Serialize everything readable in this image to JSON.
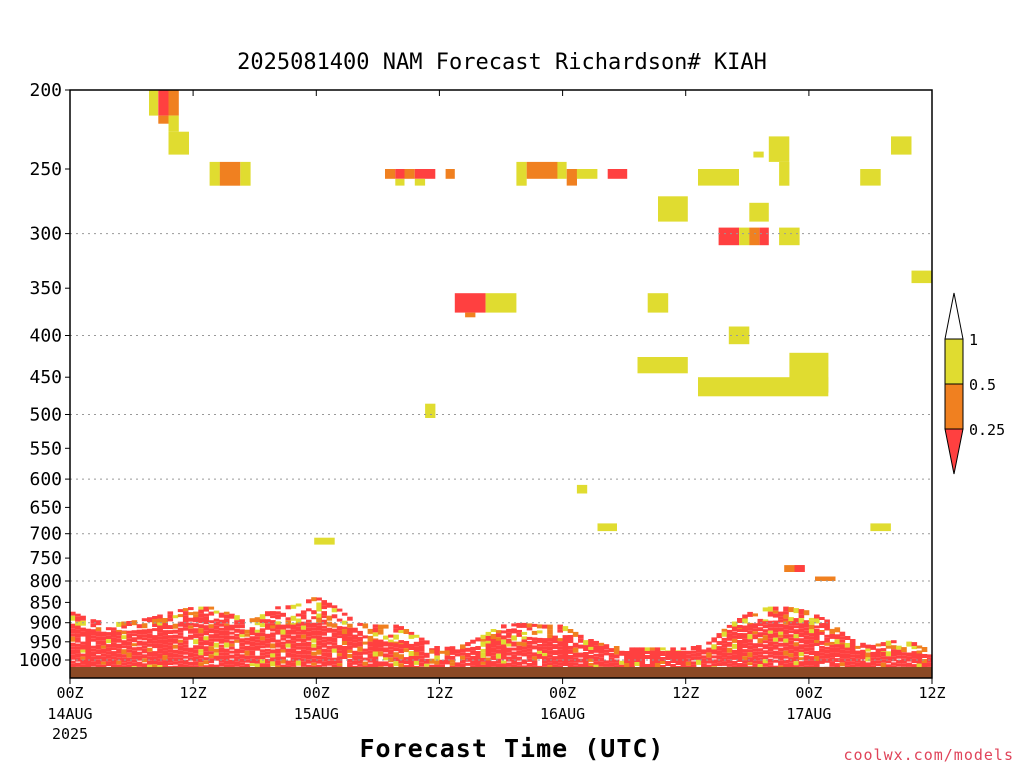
{
  "title": "2025081400 NAM Forecast Richardson# KIAH",
  "credit": "coolwx.com/models",
  "colors": {
    "red": "#ff4040",
    "orange": "#f08020",
    "yellow": "#e0dc30",
    "ground": "#8b4a26"
  },
  "chart_data": {
    "type": "heatmap",
    "title": "2025081400 NAM Forecast Richardson# KIAH",
    "xlabel": "Forecast Time (UTC)",
    "ylabel": "",
    "xlim": [
      0,
      84
    ],
    "ylim": [
      1050,
      200
    ],
    "y_scale": "log-pressure",
    "grid": "dotted horizontal",
    "y_ticks": [
      200,
      250,
      300,
      350,
      400,
      450,
      500,
      550,
      600,
      650,
      700,
      750,
      800,
      850,
      900,
      950,
      1000
    ],
    "y_tick_labels": [
      "200",
      "250",
      "300",
      "350",
      "400",
      "450",
      "500",
      "550",
      "600",
      "650",
      "700",
      "750",
      "800",
      "850",
      "900",
      "950",
      "1000"
    ],
    "x_ticks": [
      {
        "hour": 0,
        "label": "00Z",
        "sub1": "14AUG",
        "sub2": "2025"
      },
      {
        "hour": 12,
        "label": "12Z",
        "sub1": "",
        "sub2": ""
      },
      {
        "hour": 24,
        "label": "00Z",
        "sub1": "15AUG",
        "sub2": ""
      },
      {
        "hour": 36,
        "label": "12Z",
        "sub1": "",
        "sub2": ""
      },
      {
        "hour": 48,
        "label": "00Z",
        "sub1": "16AUG",
        "sub2": ""
      },
      {
        "hour": 60,
        "label": "12Z",
        "sub1": "",
        "sub2": ""
      },
      {
        "hour": 72,
        "label": "00Z",
        "sub1": "17AUG",
        "sub2": ""
      },
      {
        "hour": 84,
        "label": "12Z",
        "sub1": "",
        "sub2": ""
      }
    ],
    "legend": {
      "placement": "right",
      "entries": [
        {
          "color": "#e0dc30",
          "range": "0.5 - 1"
        },
        {
          "color": "#f08020",
          "range": "0.25 - 0.5"
        },
        {
          "color": "#ff4040",
          "range": "< 0.25"
        }
      ],
      "labels": [
        "1",
        "0.5",
        "0.25"
      ]
    },
    "ground_level_p": 1020,
    "cells": [
      {
        "t0": 7.7,
        "t1": 8.6,
        "p0": 200,
        "p1": 215,
        "c": "yellow"
      },
      {
        "t0": 8.6,
        "t1": 9.6,
        "p0": 200,
        "p1": 215,
        "c": "red"
      },
      {
        "t0": 9.6,
        "t1": 10.6,
        "p0": 200,
        "p1": 215,
        "c": "orange"
      },
      {
        "t0": 8.6,
        "t1": 9.6,
        "p0": 215,
        "p1": 220,
        "c": "orange"
      },
      {
        "t0": 9.6,
        "t1": 10.6,
        "p0": 215,
        "p1": 225,
        "c": "yellow"
      },
      {
        "t0": 9.6,
        "t1": 11.6,
        "p0": 225,
        "p1": 240,
        "c": "yellow"
      },
      {
        "t0": 13.6,
        "t1": 14.6,
        "p0": 245,
        "p1": 262,
        "c": "yellow"
      },
      {
        "t0": 14.6,
        "t1": 16.6,
        "p0": 245,
        "p1": 262,
        "c": "orange"
      },
      {
        "t0": 16.6,
        "t1": 17.6,
        "p0": 245,
        "p1": 262,
        "c": "yellow"
      },
      {
        "t0": 30.7,
        "t1": 31.7,
        "p0": 250,
        "p1": 257,
        "c": "orange"
      },
      {
        "t0": 31.7,
        "t1": 32.6,
        "p0": 250,
        "p1": 257,
        "c": "red"
      },
      {
        "t0": 32.6,
        "t1": 33.6,
        "p0": 250,
        "p1": 257,
        "c": "orange"
      },
      {
        "t0": 33.6,
        "t1": 35.6,
        "p0": 250,
        "p1": 257,
        "c": "red"
      },
      {
        "t0": 31.7,
        "t1": 32.6,
        "p0": 257,
        "p1": 262,
        "c": "yellow"
      },
      {
        "t0": 33.6,
        "t1": 34.6,
        "p0": 257,
        "p1": 262,
        "c": "yellow"
      },
      {
        "t0": 36.6,
        "t1": 37.5,
        "p0": 250,
        "p1": 257,
        "c": "orange"
      },
      {
        "t0": 43.5,
        "t1": 44.5,
        "p0": 245,
        "p1": 262,
        "c": "yellow"
      },
      {
        "t0": 44.5,
        "t1": 47.5,
        "p0": 245,
        "p1": 257,
        "c": "orange"
      },
      {
        "t0": 47.5,
        "t1": 48.4,
        "p0": 245,
        "p1": 257,
        "c": "yellow"
      },
      {
        "t0": 48.4,
        "t1": 49.4,
        "p0": 250,
        "p1": 262,
        "c": "orange"
      },
      {
        "t0": 49.4,
        "t1": 51.4,
        "p0": 250,
        "p1": 257,
        "c": "yellow"
      },
      {
        "t0": 52.4,
        "t1": 54.3,
        "p0": 250,
        "p1": 257,
        "c": "red"
      },
      {
        "t0": 61.2,
        "t1": 65.2,
        "p0": 250,
        "p1": 262,
        "c": "yellow"
      },
      {
        "t0": 57.3,
        "t1": 60.2,
        "p0": 270,
        "p1": 290,
        "c": "yellow"
      },
      {
        "t0": 66.2,
        "t1": 68.1,
        "p0": 275,
        "p1": 290,
        "c": "yellow"
      },
      {
        "t0": 68.1,
        "t1": 70.1,
        "p0": 228,
        "p1": 245,
        "c": "yellow"
      },
      {
        "t0": 66.6,
        "t1": 67.6,
        "p0": 238,
        "p1": 242,
        "c": "yellow"
      },
      {
        "t0": 69.1,
        "t1": 70.1,
        "p0": 245,
        "p1": 262,
        "c": "yellow"
      },
      {
        "t0": 77.0,
        "t1": 79.0,
        "p0": 250,
        "p1": 262,
        "c": "yellow"
      },
      {
        "t0": 80.0,
        "t1": 82.0,
        "p0": 228,
        "p1": 240,
        "c": "yellow"
      },
      {
        "t0": 63.2,
        "t1": 65.2,
        "p0": 295,
        "p1": 310,
        "c": "red"
      },
      {
        "t0": 65.2,
        "t1": 66.2,
        "p0": 295,
        "p1": 310,
        "c": "yellow"
      },
      {
        "t0": 66.2,
        "t1": 67.2,
        "p0": 295,
        "p1": 310,
        "c": "orange"
      },
      {
        "t0": 67.2,
        "t1": 68.1,
        "p0": 295,
        "p1": 310,
        "c": "red"
      },
      {
        "t0": 69.1,
        "t1": 71.1,
        "p0": 295,
        "p1": 310,
        "c": "yellow"
      },
      {
        "t0": 82.0,
        "t1": 84.0,
        "p0": 333,
        "p1": 345,
        "c": "yellow"
      },
      {
        "t0": 37.5,
        "t1": 40.5,
        "p0": 355,
        "p1": 375,
        "c": "red"
      },
      {
        "t0": 38.5,
        "t1": 39.5,
        "p0": 375,
        "p1": 380,
        "c": "orange"
      },
      {
        "t0": 40.5,
        "t1": 43.5,
        "p0": 355,
        "p1": 375,
        "c": "yellow"
      },
      {
        "t0": 56.3,
        "t1": 58.3,
        "p0": 355,
        "p1": 375,
        "c": "yellow"
      },
      {
        "t0": 64.2,
        "t1": 66.2,
        "p0": 390,
        "p1": 410,
        "c": "yellow"
      },
      {
        "t0": 55.3,
        "t1": 60.2,
        "p0": 425,
        "p1": 445,
        "c": "yellow"
      },
      {
        "t0": 70.1,
        "t1": 73.9,
        "p0": 420,
        "p1": 470,
        "c": "yellow"
      },
      {
        "t0": 61.2,
        "t1": 73.9,
        "p0": 450,
        "p1": 475,
        "c": "yellow"
      },
      {
        "t0": 34.6,
        "t1": 35.6,
        "p0": 485,
        "p1": 505,
        "c": "yellow"
      },
      {
        "t0": 49.4,
        "t1": 50.4,
        "p0": 610,
        "p1": 625,
        "c": "yellow"
      },
      {
        "t0": 51.4,
        "t1": 53.3,
        "p0": 680,
        "p1": 695,
        "c": "yellow"
      },
      {
        "t0": 78.0,
        "t1": 80.0,
        "p0": 680,
        "p1": 695,
        "c": "yellow"
      },
      {
        "t0": 23.8,
        "t1": 25.8,
        "p0": 708,
        "p1": 722,
        "c": "yellow"
      },
      {
        "t0": 69.6,
        "t1": 71.6,
        "p0": 765,
        "p1": 780,
        "c": "orange"
      },
      {
        "t0": 70.6,
        "t1": 71.6,
        "p0": 765,
        "p1": 780,
        "c": "red"
      },
      {
        "t0": 72.6,
        "t1": 74.6,
        "p0": 790,
        "p1": 800,
        "c": "orange"
      }
    ],
    "lower_layer": {
      "hours": [
        0,
        2,
        4,
        6,
        8,
        10,
        12,
        14,
        16,
        18,
        20,
        22,
        24,
        26,
        28,
        30,
        32,
        34,
        36,
        38,
        40,
        42,
        44,
        46,
        48,
        50,
        52,
        54,
        56,
        58,
        60,
        62,
        64,
        66,
        68,
        70,
        72,
        74,
        76,
        78,
        80,
        82,
        84
      ],
      "top_p": [
        870,
        890,
        900,
        895,
        885,
        870,
        860,
        860,
        880,
        890,
        860,
        855,
        835,
        860,
        900,
        905,
        905,
        935,
        965,
        960,
        935,
        905,
        900,
        905,
        905,
        935,
        955,
        965,
        965,
        965,
        965,
        955,
        910,
        875,
        860,
        860,
        870,
        895,
        940,
        960,
        945,
        950,
        955
      ],
      "dense_top_p": [
        900,
        920,
        925,
        920,
        915,
        905,
        885,
        895,
        915,
        920,
        905,
        905,
        885,
        905,
        935,
        945,
        955,
        965,
        975,
        970,
        960,
        945,
        935,
        940,
        940,
        960,
        970,
        975,
        975,
        975,
        975,
        970,
        935,
        905,
        895,
        895,
        905,
        935,
        970,
        980,
        975,
        980,
        985
      ]
    }
  }
}
